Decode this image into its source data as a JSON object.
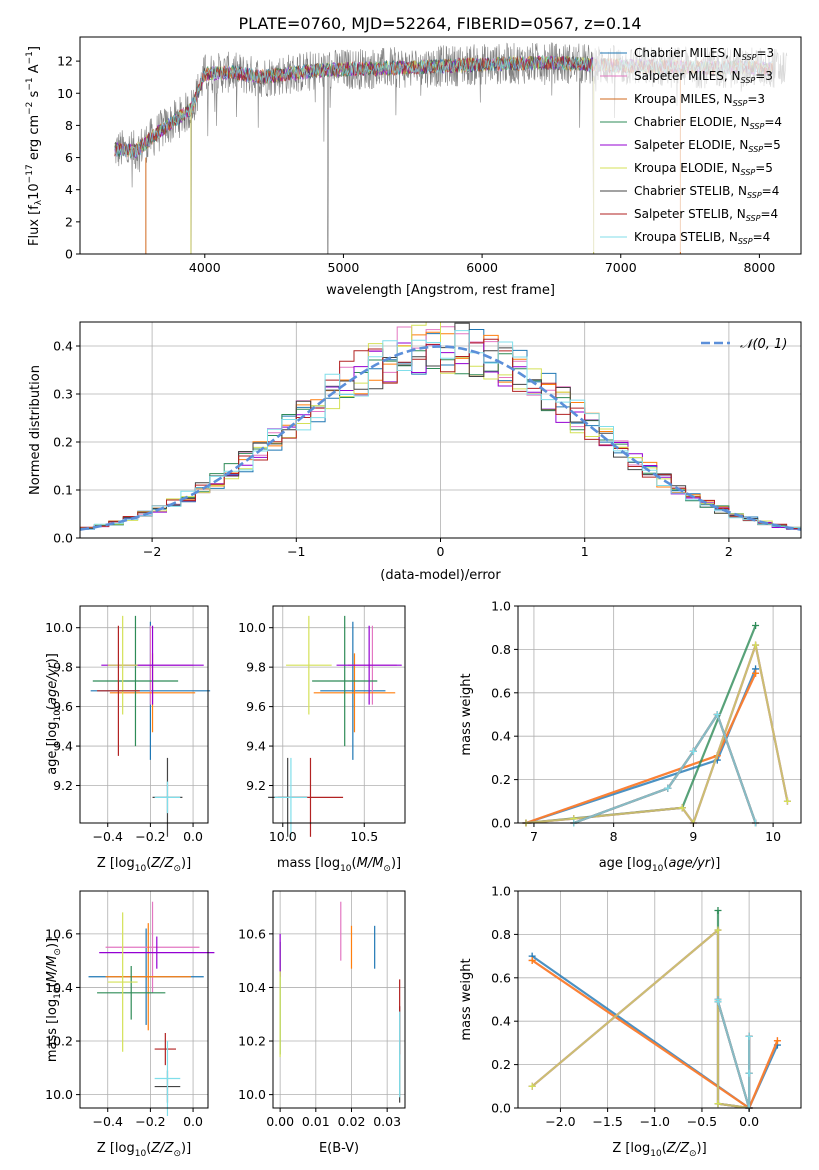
{
  "figure": {
    "title": "PLATE=0760, MJD=52264, FIBERID=0567, z=0.14"
  },
  "chart_data": [
    {
      "id": "spectrum",
      "type": "line",
      "xlabel": "wavelength [Angstrom, rest frame]",
      "ylabel": "Flux [f_λ10^-17 erg cm^-2 s^-1 A^-1]",
      "xlim": [
        3100,
        8300
      ],
      "ylim": [
        0,
        13.5
      ],
      "xticks": [
        4000,
        5000,
        6000,
        7000,
        8000
      ],
      "yticks": [
        0,
        2,
        4,
        6,
        8,
        10,
        12
      ],
      "grid": false,
      "legend_position": "top-right",
      "observed_color": "#808080",
      "observed_anchor": {
        "x": [
          3350,
          3500,
          3700,
          3900,
          4000,
          4200,
          4400,
          4800,
          5000,
          5500,
          6000,
          6500,
          7000,
          7500,
          8000,
          8200
        ],
        "y": [
          6.5,
          6.4,
          7.8,
          9.0,
          11.2,
          11.3,
          11.0,
          11.4,
          11.5,
          11.6,
          11.8,
          11.9,
          11.7,
          11.6,
          11.6,
          11.5
        ]
      },
      "series": [
        {
          "name": "Chabrier MILES, N_SSP=3",
          "color": "#1f77b4"
        },
        {
          "name": "Salpeter MILES, N_SSP=3",
          "color": "#e377c2"
        },
        {
          "name": "Kroupa MILES, N_SSP=3",
          "color": "#d2691e"
        },
        {
          "name": "Chabrier ELODIE, N_SSP=4",
          "color": "#2e8b57"
        },
        {
          "name": "Salpeter ELODIE, N_SSP=5",
          "color": "#9400d3"
        },
        {
          "name": "Kroupa ELODIE, N_SSP=5",
          "color": "#d4e157"
        },
        {
          "name": "Chabrier STELIB, N_SSP=4",
          "color": "#444444"
        },
        {
          "name": "Salpeter STELIB, N_SSP=4",
          "color": "#b22222"
        },
        {
          "name": "Kroupa STELIB, N_SSP=4",
          "color": "#80deea"
        }
      ],
      "model_range": [
        3350,
        8100
      ]
    },
    {
      "id": "histogram",
      "type": "line",
      "xlabel": "(data-model)/error",
      "ylabel": "Normed distribution",
      "xlim": [
        -2.5,
        2.5
      ],
      "ylim": [
        0,
        0.45
      ],
      "xticks": [
        -2,
        -1,
        0,
        1,
        2
      ],
      "xtick_labels": [
        "−2",
        "−1",
        "0",
        "1",
        "2"
      ],
      "yticks": [
        0.0,
        0.1,
        0.2,
        0.3,
        0.4
      ],
      "grid": true,
      "legend_label": "𝒩(0, 1)",
      "legend_position": "top-right",
      "gaussian_color": "#5b8fd9",
      "bin_width": 0.1,
      "series_colors": [
        "#1f77b4",
        "#e377c2",
        "#ff7f0e",
        "#2e8b57",
        "#9400d3",
        "#d4e157",
        "#444444",
        "#b22222",
        "#80deea"
      ]
    },
    {
      "id": "age_vs_Z",
      "type": "scatter",
      "xlabel": "Z [log10(Z/Z⊙)]",
      "ylabel": "age [log10(age/yr)]",
      "xlim": [
        -0.53,
        0.07
      ],
      "ylim": [
        9.01,
        10.11
      ],
      "xticks": [
        -0.4,
        -0.2,
        0.0
      ],
      "xtick_labels": [
        "−0.4",
        "−0.2",
        "0.0"
      ],
      "yticks": [
        9.2,
        9.4,
        9.6,
        9.8,
        10.0
      ],
      "ytick_labels": [
        "9.2",
        "9.4",
        "9.6",
        "9.8",
        "10.0"
      ],
      "grid": true,
      "points": [
        {
          "x": -0.2,
          "y": 9.68,
          "xerr": 0.28,
          "yerr": 0.35,
          "color": "#1f77b4"
        },
        {
          "x": -0.2,
          "y": 9.81,
          "xerr": 0.2,
          "yerr": 0.2,
          "color": "#e377c2"
        },
        {
          "x": -0.19,
          "y": 9.67,
          "xerr": 0.2,
          "yerr": 0.2,
          "color": "#ff7f0e"
        },
        {
          "x": -0.27,
          "y": 9.73,
          "xerr": 0.2,
          "yerr": 0.33,
          "color": "#2e8b57"
        },
        {
          "x": -0.19,
          "y": 9.81,
          "xerr": 0.24,
          "yerr": 0.2,
          "color": "#9400d3"
        },
        {
          "x": -0.33,
          "y": 9.81,
          "xerr": 0.07,
          "yerr": 0.25,
          "color": "#d4e157"
        },
        {
          "x": -0.12,
          "y": 9.14,
          "xerr": 0.07,
          "yerr": 0.2,
          "color": "#444444"
        },
        {
          "x": -0.35,
          "y": 9.68,
          "xerr": 0.1,
          "yerr": 0.33,
          "color": "#b22222"
        },
        {
          "x": -0.12,
          "y": 9.14,
          "xerr": 0.06,
          "yerr": 0.08,
          "color": "#80deea"
        }
      ]
    },
    {
      "id": "age_vs_mass",
      "type": "scatter",
      "xlabel": "mass [log10(M/M⊙)]",
      "ylabel": "",
      "xlim": [
        9.94,
        10.75
      ],
      "ylim": [
        9.01,
        10.11
      ],
      "xticks": [
        10.0,
        10.5
      ],
      "xtick_labels": [
        "10.0",
        "10.5"
      ],
      "yticks": [
        9.2,
        9.4,
        9.6,
        9.8,
        10.0
      ],
      "ytick_labels": [
        "9.2",
        "9.4",
        "9.6",
        "9.8",
        "10.0"
      ],
      "grid": true,
      "points": [
        {
          "x": 10.43,
          "y": 9.68,
          "xerr": 0.2,
          "yerr": 0.35,
          "color": "#1f77b4"
        },
        {
          "x": 10.55,
          "y": 9.81,
          "xerr": 0.15,
          "yerr": 0.2,
          "color": "#e377c2"
        },
        {
          "x": 10.44,
          "y": 9.67,
          "xerr": 0.25,
          "yerr": 0.2,
          "color": "#ff7f0e"
        },
        {
          "x": 10.38,
          "y": 9.73,
          "xerr": 0.2,
          "yerr": 0.33,
          "color": "#2e8b57"
        },
        {
          "x": 10.53,
          "y": 9.81,
          "xerr": 0.2,
          "yerr": 0.2,
          "color": "#9400d3"
        },
        {
          "x": 10.16,
          "y": 9.81,
          "xerr": 0.14,
          "yerr": 0.25,
          "color": "#d4e157"
        },
        {
          "x": 10.03,
          "y": 9.14,
          "xerr": 0.12,
          "yerr": 0.2,
          "color": "#444444"
        },
        {
          "x": 10.17,
          "y": 9.14,
          "xerr": 0.2,
          "yerr": 0.2,
          "color": "#b22222"
        },
        {
          "x": 10.05,
          "y": 9.14,
          "xerr": 0.1,
          "yerr": 0.2,
          "color": "#80deea"
        }
      ]
    },
    {
      "id": "weight_vs_age",
      "type": "line",
      "xlabel": "age [log10(age/yr)]",
      "ylabel": "mass weight",
      "xlim": [
        6.8,
        10.35
      ],
      "ylim": [
        0,
        1.0
      ],
      "xticks": [
        7,
        8,
        9,
        10
      ],
      "xtick_labels": [
        "7",
        "8",
        "9",
        "10"
      ],
      "yticks": [
        0.0,
        0.2,
        0.4,
        0.6,
        0.8,
        1.0
      ],
      "ytick_labels": [
        "0.0",
        "0.2",
        "0.4",
        "0.6",
        "0.8",
        "1.0"
      ],
      "grid": true,
      "series": [
        {
          "color": "#1f77b4",
          "x": [
            6.9,
            9.3,
            9.78
          ],
          "y": [
            0.0,
            0.29,
            0.71
          ]
        },
        {
          "color": "#e377c2",
          "x": [
            6.9,
            9.3,
            9.78
          ],
          "y": [
            0.0,
            0.31,
            0.69
          ]
        },
        {
          "color": "#ff7f0e",
          "x": [
            6.9,
            9.3,
            9.78
          ],
          "y": [
            0.0,
            0.31,
            0.69
          ]
        },
        {
          "color": "#2e8b57",
          "x": [
            6.9,
            8.86,
            9.78
          ],
          "y": [
            0.0,
            0.07,
            0.91
          ]
        },
        {
          "color": "#9400d3",
          "x": [
            6.9,
            7.5,
            8.86,
            9.0,
            9.78,
            10.18
          ],
          "y": [
            0.0,
            0.02,
            0.07,
            0.0,
            0.82,
            0.1
          ]
        },
        {
          "color": "#d4e157",
          "x": [
            6.9,
            7.5,
            8.86,
            9.0,
            9.78,
            10.18
          ],
          "y": [
            0.0,
            0.02,
            0.07,
            0.0,
            0.82,
            0.1
          ]
        },
        {
          "color": "#444444",
          "x": [
            7.5,
            8.68,
            9.0,
            9.3,
            9.78
          ],
          "y": [
            0.0,
            0.16,
            0.33,
            0.5,
            0.0
          ]
        },
        {
          "color": "#b22222",
          "x": [
            7.5,
            8.68,
            9.0,
            9.3,
            9.78
          ],
          "y": [
            0.0,
            0.16,
            0.33,
            0.5,
            0.0
          ]
        },
        {
          "color": "#80deea",
          "x": [
            7.5,
            8.68,
            9.0,
            9.3,
            9.78
          ],
          "y": [
            0.0,
            0.16,
            0.33,
            0.5,
            0.0
          ]
        }
      ]
    },
    {
      "id": "mass_vs_Z",
      "type": "scatter",
      "xlabel": "Z [log10(Z/Z⊙)]",
      "ylabel": "mass [log10(M/M⊙)]",
      "xlim": [
        -0.53,
        0.07
      ],
      "ylim": [
        9.95,
        10.76
      ],
      "xticks": [
        -0.4,
        -0.2,
        0.0
      ],
      "xtick_labels": [
        "−0.4",
        "−0.2",
        "0.0"
      ],
      "yticks": [
        10.0,
        10.2,
        10.4,
        10.6
      ],
      "ytick_labels": [
        "10.0",
        "10.2",
        "10.4",
        "10.6"
      ],
      "grid": true,
      "points": [
        {
          "x": -0.22,
          "y": 10.44,
          "xerr": 0.27,
          "yerr": 0.18,
          "color": "#1f77b4"
        },
        {
          "x": -0.19,
          "y": 10.55,
          "xerr": 0.22,
          "yerr": 0.17,
          "color": "#e377c2"
        },
        {
          "x": -0.21,
          "y": 10.44,
          "xerr": 0.2,
          "yerr": 0.2,
          "color": "#ff7f0e"
        },
        {
          "x": -0.29,
          "y": 10.38,
          "xerr": 0.16,
          "yerr": 0.1,
          "color": "#2e8b57"
        },
        {
          "x": -0.17,
          "y": 10.53,
          "xerr": 0.27,
          "yerr": 0.06,
          "color": "#9400d3"
        },
        {
          "x": -0.33,
          "y": 10.42,
          "xerr": 0.07,
          "yerr": 0.26,
          "color": "#d4e157"
        },
        {
          "x": -0.12,
          "y": 10.03,
          "xerr": 0.06,
          "yerr": 0.06,
          "color": "#444444"
        },
        {
          "x": -0.13,
          "y": 10.17,
          "xerr": 0.05,
          "yerr": 0.06,
          "color": "#b22222"
        },
        {
          "x": -0.12,
          "y": 10.06,
          "xerr": 0.06,
          "yerr": 0.14,
          "color": "#80deea"
        }
      ]
    },
    {
      "id": "mass_vs_ebv",
      "type": "scatter",
      "xlabel": "E(B-V)",
      "ylabel": "",
      "xlim": [
        -0.002,
        0.035
      ],
      "ylim": [
        9.95,
        10.76
      ],
      "xticks": [
        0.0,
        0.01,
        0.02,
        0.03
      ],
      "xtick_labels": [
        "0.00",
        "0.01",
        "0.02",
        "0.03"
      ],
      "yticks": [
        10.0,
        10.2,
        10.4,
        10.6
      ],
      "ytick_labels": [
        "10.0",
        "10.2",
        "10.4",
        "10.6"
      ],
      "grid": true,
      "points": [
        {
          "x": 0.0265,
          "y": 10.55,
          "xerr": 0,
          "yerr": 0.08,
          "color": "#1f77b4"
        },
        {
          "x": 0.017,
          "y": 10.61,
          "xerr": 0,
          "yerr": 0.11,
          "color": "#e377c2"
        },
        {
          "x": 0.02,
          "y": 10.55,
          "xerr": 0,
          "yerr": 0.08,
          "color": "#ff7f0e"
        },
        {
          "x": 0.0,
          "y": 10.36,
          "xerr": 0,
          "yerr": 0.21,
          "color": "#2e8b57"
        },
        {
          "x": 0.0,
          "y": 10.52,
          "xerr": 0,
          "yerr": 0.08,
          "color": "#9400d3"
        },
        {
          "x": 0.0,
          "y": 10.3,
          "xerr": 0,
          "yerr": 0.16,
          "color": "#d4e157"
        },
        {
          "x": 0.0335,
          "y": 10.15,
          "xerr": 0,
          "yerr": 0.18,
          "color": "#444444"
        },
        {
          "x": 0.0335,
          "y": 10.29,
          "xerr": 0,
          "yerr": 0.14,
          "color": "#b22222"
        },
        {
          "x": 0.0335,
          "y": 10.15,
          "xerr": 0,
          "yerr": 0.16,
          "color": "#80deea"
        }
      ]
    },
    {
      "id": "weight_vs_Z",
      "type": "line",
      "xlabel": "Z [log10(Z/Z⊙)]",
      "ylabel": "mass weight",
      "xlim": [
        -2.45,
        0.55
      ],
      "ylim": [
        0,
        1.0
      ],
      "xticks": [
        -2.0,
        -1.5,
        -1.0,
        -0.5,
        0.0
      ],
      "xtick_labels": [
        "−2.0",
        "−1.5",
        "−1.0",
        "−0.5",
        "0.0"
      ],
      "yticks": [
        0.0,
        0.2,
        0.4,
        0.6,
        0.8,
        1.0
      ],
      "ytick_labels": [
        "0.0",
        "0.2",
        "0.4",
        "0.6",
        "0.8",
        "1.0"
      ],
      "grid": true,
      "series": [
        {
          "color": "#1f77b4",
          "x": [
            -2.3,
            0.0,
            0.3
          ],
          "y": [
            0.7,
            0.0,
            0.29
          ]
        },
        {
          "color": "#e377c2",
          "x": [
            -2.3,
            0.0,
            0.3
          ],
          "y": [
            0.68,
            0.0,
            0.31
          ]
        },
        {
          "color": "#ff7f0e",
          "x": [
            -2.3,
            0.0,
            0.3
          ],
          "y": [
            0.68,
            0.0,
            0.31
          ]
        },
        {
          "color": "#2e8b57",
          "x": [
            -0.33,
            -0.33,
            0.0
          ],
          "y": [
            0.91,
            0.02,
            0.0
          ]
        },
        {
          "color": "#9400d3",
          "x": [
            -2.3,
            -0.33,
            -0.33,
            0.0
          ],
          "y": [
            0.1,
            0.82,
            0.02,
            0.0
          ]
        },
        {
          "color": "#d4e157",
          "x": [
            -2.3,
            -0.33,
            -0.33,
            0.0
          ],
          "y": [
            0.1,
            0.82,
            0.02,
            0.0
          ]
        },
        {
          "color": "#444444",
          "x": [
            -0.33,
            -0.33,
            0.0,
            0.0,
            0.0
          ],
          "y": [
            0.5,
            0.49,
            0.0,
            0.33,
            0.16
          ]
        },
        {
          "color": "#b22222",
          "x": [
            -0.33,
            -0.33,
            0.0,
            0.0,
            0.0
          ],
          "y": [
            0.5,
            0.49,
            0.0,
            0.33,
            0.16
          ]
        },
        {
          "color": "#80deea",
          "x": [
            -0.33,
            -0.33,
            0.0,
            0.0,
            0.0
          ],
          "y": [
            0.5,
            0.49,
            0.0,
            0.33,
            0.16
          ]
        }
      ]
    }
  ]
}
